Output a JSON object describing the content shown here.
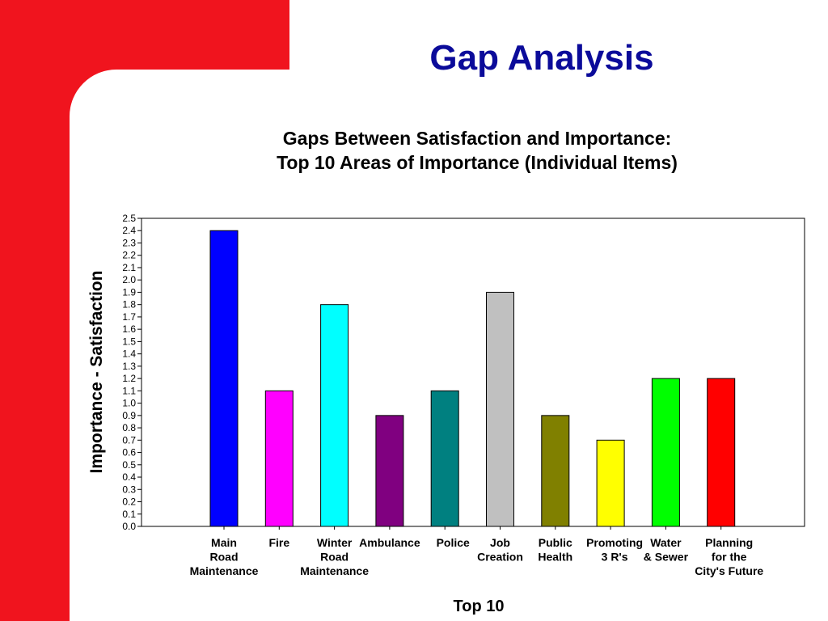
{
  "slide": {
    "title": "Gap Analysis"
  },
  "colors": {
    "accent_red": "#f0141e",
    "title_blue": "#0b0b9a"
  },
  "chart_data": {
    "type": "bar",
    "title_lines": [
      "Gaps Between Satisfaction and Importance:",
      "Top 10 Areas of Importance (Individual Items)"
    ],
    "xlabel": "Top 10",
    "ylabel": "Importance - Satisfaction",
    "ylim": [
      0,
      2.5
    ],
    "ytick_step": 0.1,
    "grid": false,
    "categories": [
      [
        "Main",
        "Road",
        "Maintenance"
      ],
      [
        "Fire"
      ],
      [
        "Winter",
        "Road",
        "Maintenance"
      ],
      [
        "Ambulance"
      ],
      [
        "Police"
      ],
      [
        "Job",
        "Creation"
      ],
      [
        "Public",
        "Health"
      ],
      [
        "Promoting",
        "3 R's"
      ],
      [
        "Water",
        "& Sewer"
      ],
      [
        "Planning",
        "for the",
        "City's Future"
      ]
    ],
    "values": [
      2.4,
      1.1,
      1.8,
      0.9,
      1.1,
      1.9,
      0.9,
      0.7,
      1.2,
      1.2
    ],
    "bar_colors": [
      "#0000ff",
      "#ff00ff",
      "#00ffff",
      "#800080",
      "#008080",
      "#c0c0c0",
      "#808000",
      "#ffff00",
      "#00ff00",
      "#ff0000"
    ]
  }
}
